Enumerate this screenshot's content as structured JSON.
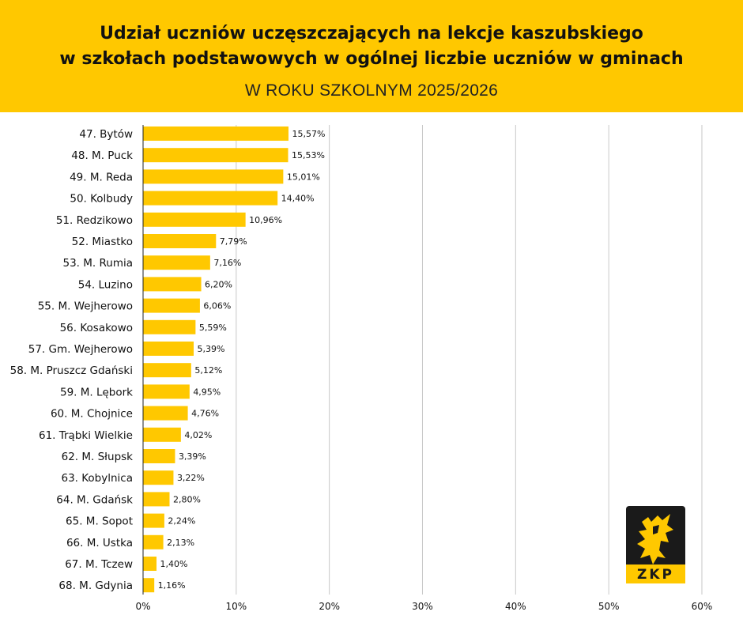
{
  "header": {
    "title_line1": "Udział uczniów uczęszczających na lekcje kaszubskiego",
    "title_line2": "w szkołach podstawowych w ogólnej liczbie uczniów w gminach",
    "subtitle": "W ROKU SZKOLNYM 2025/2026",
    "background": "#ffc800"
  },
  "logo": {
    "text": "ZKP",
    "icon": "griffin-emblem-icon"
  },
  "chart_data": {
    "type": "bar",
    "orientation": "horizontal",
    "bar_color": "#ffc800",
    "grid": true,
    "xlim": [
      0,
      60
    ],
    "x_ticks": [
      "0%",
      "10%",
      "20%",
      "30%",
      "40%",
      "50%",
      "60%"
    ],
    "categories": [
      "47. Bytów",
      "48. M. Puck",
      "49. M. Reda",
      "50. Kolbudy",
      "51. Redzikowo",
      "52. Miastko",
      "53. M. Rumia",
      "54. Luzino",
      "55. M. Wejherowo",
      "56. Kosakowo",
      "57. Gm. Wejherowo",
      "58. M. Pruszcz Gdański",
      "59. M. Lębork",
      "60. M. Chojnice",
      "61. Trąbki Wielkie",
      "62. M. Słupsk",
      "63. Kobylnica",
      "64. M. Gdańsk",
      "65. M. Sopot",
      "66. M. Ustka",
      "67. M. Tczew",
      "68. M. Gdynia"
    ],
    "values": [
      15.57,
      15.53,
      15.01,
      14.4,
      10.96,
      7.79,
      7.16,
      6.2,
      6.06,
      5.59,
      5.39,
      5.12,
      4.95,
      4.76,
      4.02,
      3.39,
      3.22,
      2.8,
      2.24,
      2.13,
      1.4,
      1.16
    ],
    "value_labels": [
      "15,57%",
      "15,53%",
      "15,01%",
      "14,40%",
      "10,96%",
      "7,79%",
      "7,16%",
      "6,20%",
      "6,06%",
      "5,59%",
      "5,39%",
      "5,12%",
      "4,95%",
      "4,76%",
      "4,02%",
      "3,39%",
      "3,22%",
      "2,80%",
      "2,24%",
      "2,13%",
      "1,40%",
      "1,16%"
    ]
  }
}
